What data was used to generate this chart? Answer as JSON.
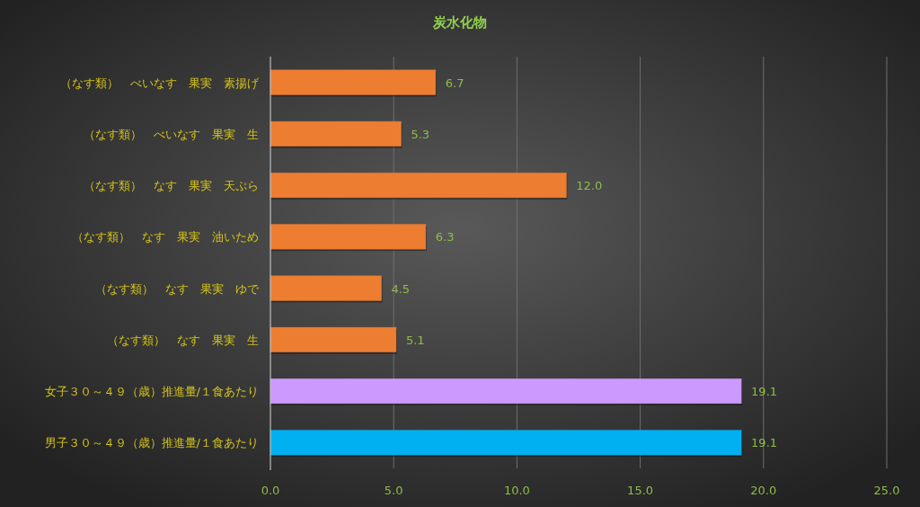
{
  "chart_data": {
    "type": "bar",
    "orientation": "horizontal",
    "title": "炭水化物",
    "categories": [
      "（なす類）　べいなす　果実　素揚げ",
      "（なす類）　べいなす　果実　生",
      "（なす類）　なす　果実　天ぷら",
      "（なす類）　なす　果実　油いため",
      "（なす類）　なす　果実　ゆで",
      "（なす類）　なす　果実　生",
      "女子３０～４９（歳）推進量/１食あたり",
      "男子３０～４９（歳）推進量/１食あたり"
    ],
    "values": [
      6.7,
      5.3,
      12.0,
      6.3,
      4.5,
      5.1,
      19.1,
      19.1
    ],
    "colors": [
      "#ed7d31",
      "#ed7d31",
      "#ed7d31",
      "#ed7d31",
      "#ed7d31",
      "#ed7d31",
      "#cc99ff",
      "#00b0f0"
    ],
    "value_labels": [
      "6.7",
      "5.3",
      "12.0",
      "6.3",
      "4.5",
      "5.1",
      "19.1",
      "19.1"
    ],
    "xlim": [
      0,
      25
    ],
    "xticks": [
      {
        "value": 0,
        "label": "0.0"
      },
      {
        "value": 5,
        "label": "5.0"
      },
      {
        "value": 10,
        "label": "10.0"
      },
      {
        "value": 15,
        "label": "15.0"
      },
      {
        "value": 20,
        "label": "20.0"
      },
      {
        "value": 25,
        "label": "25.0"
      }
    ],
    "grid": "x"
  }
}
